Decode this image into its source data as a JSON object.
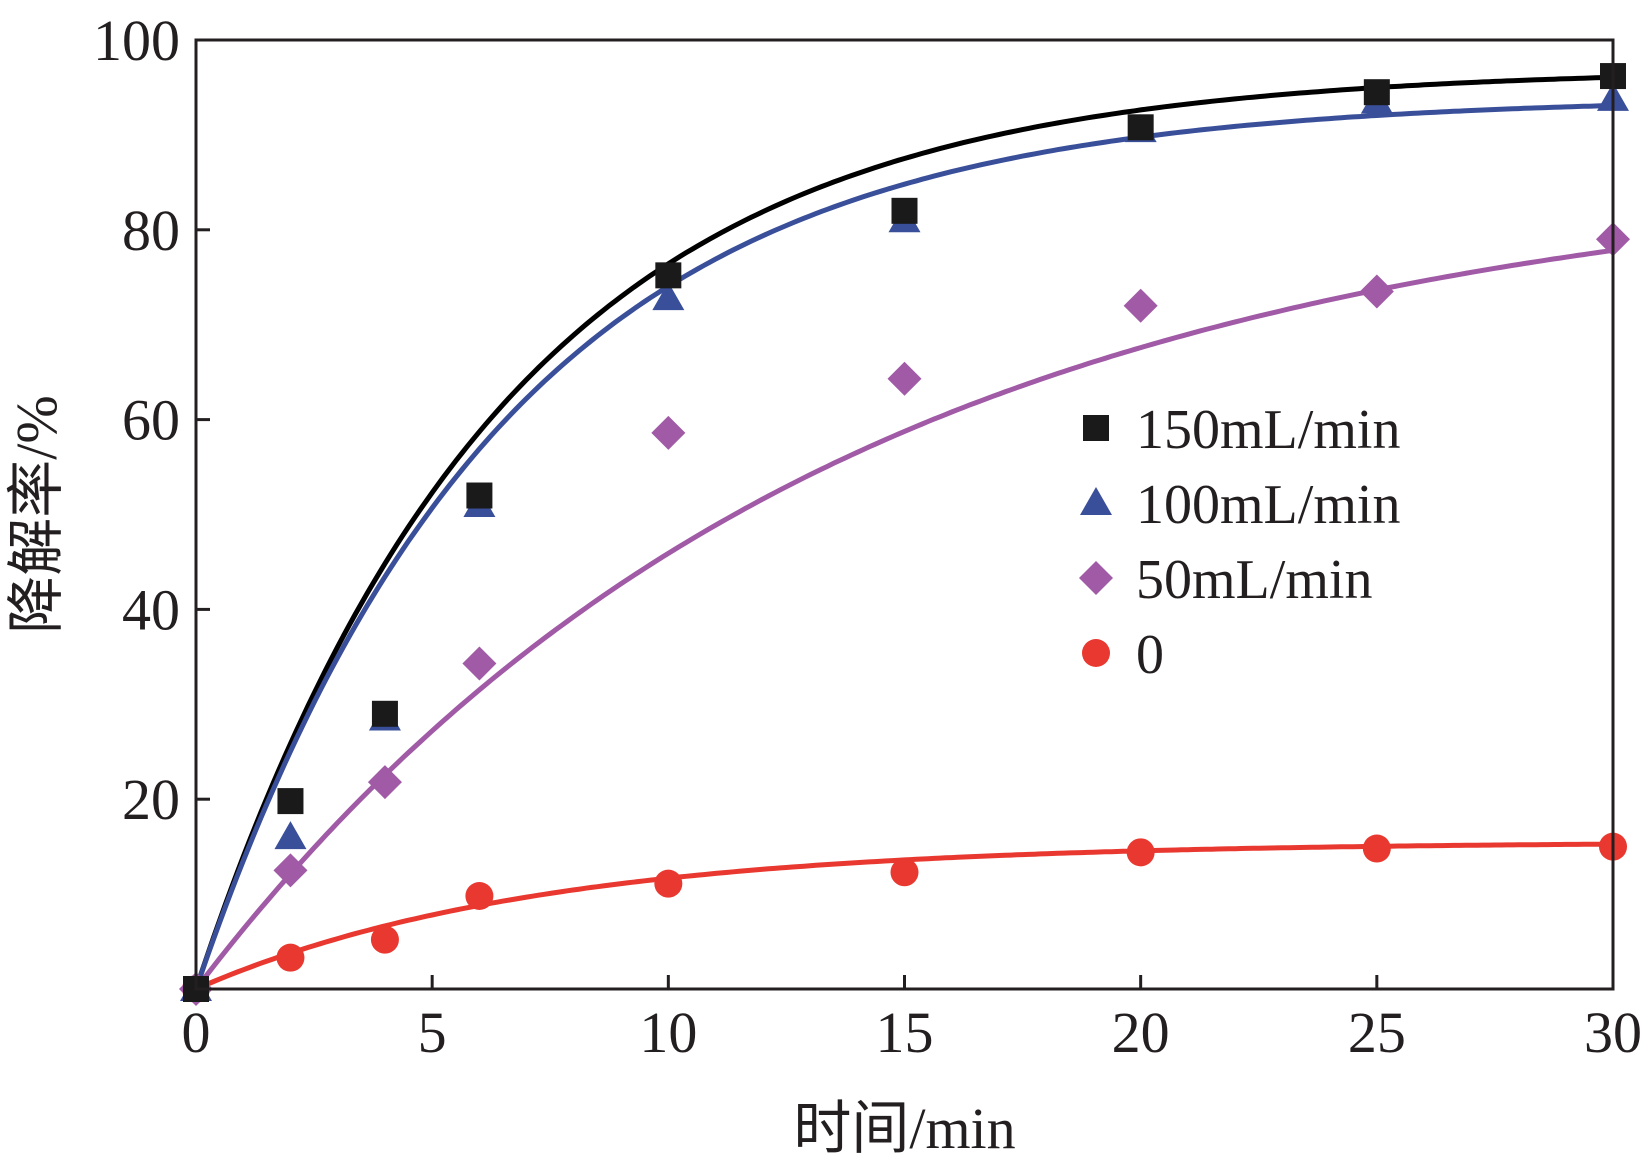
{
  "chart_data": {
    "type": "scatter",
    "title": "",
    "xlabel": "时间/min",
    "ylabel": "降解率/%",
    "xlim": [
      0,
      30
    ],
    "ylim": [
      0,
      100
    ],
    "xticks": [
      0,
      5,
      10,
      15,
      20,
      25,
      30
    ],
    "yticks": [
      20,
      40,
      60,
      80,
      100
    ],
    "xtick_labels": [
      "0",
      "5",
      "10",
      "15",
      "20",
      "25",
      "30"
    ],
    "ytick_labels": [
      "20",
      "40",
      "60",
      "80",
      "100"
    ],
    "grid": false,
    "legend_position": "center-right",
    "fit_curves": true,
    "series": [
      {
        "name": "150mL/min",
        "marker": "square",
        "color": "#1a1a1a",
        "line_color": "#000000",
        "x": [
          0,
          2,
          4,
          6,
          10,
          15,
          20,
          25,
          30
        ],
        "y": [
          0,
          19.8,
          29,
          52,
          75.2,
          82,
          90.8,
          94.5,
          96.2
        ],
        "fit": {
          "a": 97,
          "k": 0.155
        }
      },
      {
        "name": "100mL/min",
        "marker": "triangle",
        "color": "#3a4f9a",
        "line_color": "#3a4f9a",
        "x": [
          0,
          2,
          4,
          6,
          10,
          15,
          20,
          25,
          30
        ],
        "y": [
          0,
          16,
          28.5,
          51,
          72.8,
          81,
          90.5,
          93.5,
          93.8
        ],
        "fit": {
          "a": 94,
          "k": 0.155
        }
      },
      {
        "name": "50mL/min",
        "marker": "diamond",
        "color": "#a05aa6",
        "line_color": "#a05aa6",
        "x": [
          0,
          2,
          4,
          6,
          10,
          15,
          20,
          25,
          30
        ],
        "y": [
          0,
          12.5,
          21.8,
          34.3,
          58.6,
          64.3,
          72,
          73.5,
          79
        ],
        "fit": {
          "a": 87,
          "k": 0.075
        }
      },
      {
        "name": "0",
        "marker": "circle",
        "color": "#e8382f",
        "line_color": "#e8382f",
        "x": [
          0,
          2,
          4,
          6,
          10,
          15,
          20,
          25,
          30
        ],
        "y": [
          0,
          3.3,
          5.2,
          9.8,
          11.1,
          12.3,
          14.4,
          14.8,
          15
        ],
        "fit": {
          "a": 15.5,
          "k": 0.14
        }
      }
    ]
  }
}
